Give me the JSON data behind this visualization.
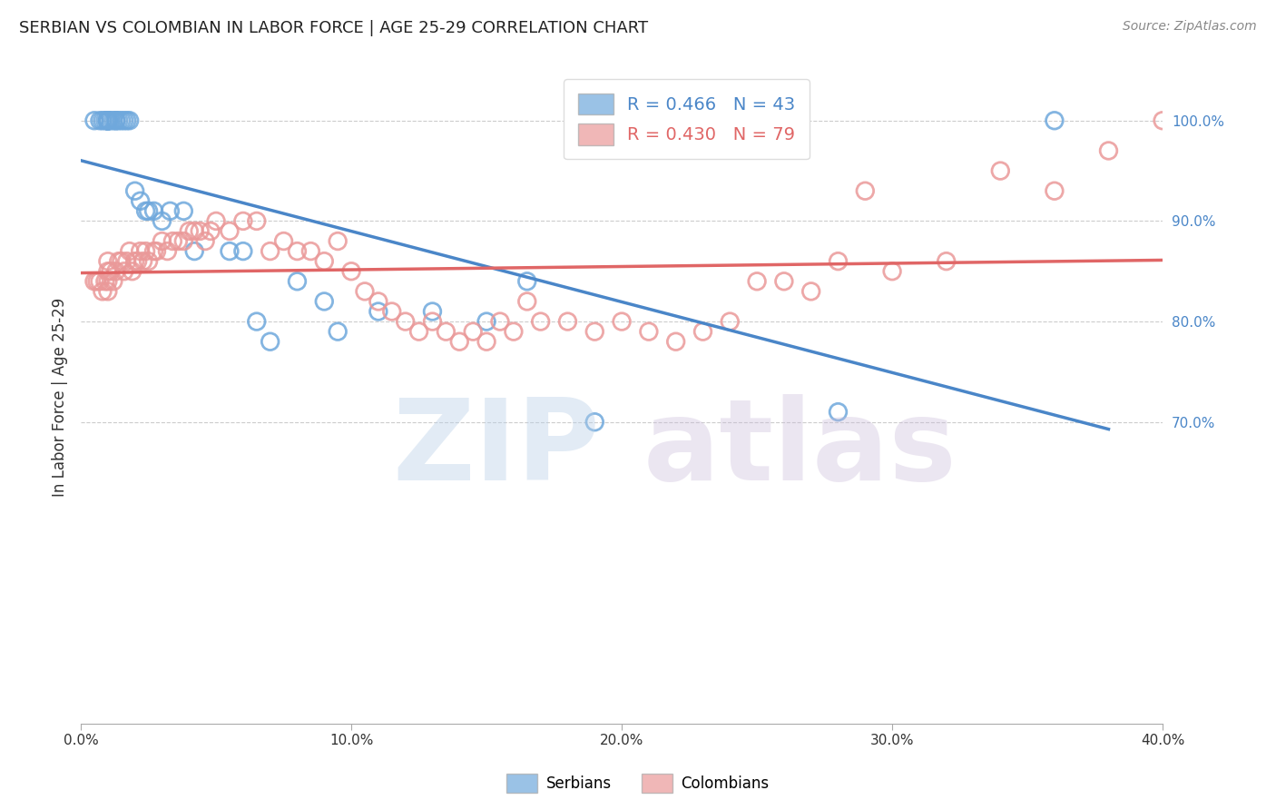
{
  "title": "SERBIAN VS COLOMBIAN IN LABOR FORCE | AGE 25-29 CORRELATION CHART",
  "source": "Source: ZipAtlas.com",
  "ylabel": "In Labor Force | Age 25-29",
  "xlabel_ticks": [
    "0.0%",
    "10.0%",
    "20.0%",
    "30.0%",
    "40.0%"
  ],
  "xlabel_vals": [
    0.0,
    0.1,
    0.2,
    0.3,
    0.4
  ],
  "ylabel_ticks": [
    "70.0%",
    "80.0%",
    "90.0%",
    "100.0%"
  ],
  "ylabel_vals": [
    0.7,
    0.8,
    0.9,
    1.0
  ],
  "xlim": [
    0.0,
    0.4
  ],
  "ylim": [
    0.4,
    1.05
  ],
  "R_serbian": 0.466,
  "N_serbian": 43,
  "R_colombian": 0.43,
  "N_colombian": 79,
  "blue_color": "#6fa8dc",
  "pink_color": "#ea9999",
  "blue_line_color": "#4a86c8",
  "pink_line_color": "#e06666",
  "title_color": "#222222",
  "axis_label_color": "#333333",
  "tick_color_right": "#4a86c8",
  "grid_color": "#cccccc",
  "legend_label_serbian": "Serbians",
  "legend_label_colombian": "Colombians",
  "serbian_x": [
    0.005,
    0.007,
    0.008,
    0.009,
    0.01,
    0.01,
    0.01,
    0.01,
    0.01,
    0.01,
    0.01,
    0.011,
    0.012,
    0.013,
    0.013,
    0.014,
    0.015,
    0.016,
    0.017,
    0.018,
    0.02,
    0.022,
    0.024,
    0.025,
    0.027,
    0.03,
    0.033,
    0.038,
    0.042,
    0.055,
    0.06,
    0.065,
    0.07,
    0.08,
    0.09,
    0.095,
    0.11,
    0.13,
    0.15,
    0.165,
    0.19,
    0.28,
    0.36
  ],
  "serbian_y": [
    1.0,
    1.0,
    1.0,
    1.0,
    1.0,
    1.0,
    1.0,
    1.0,
    1.0,
    1.0,
    1.0,
    1.0,
    1.0,
    1.0,
    1.0,
    1.0,
    1.0,
    1.0,
    1.0,
    1.0,
    0.93,
    0.92,
    0.91,
    0.91,
    0.91,
    0.9,
    0.91,
    0.91,
    0.87,
    0.87,
    0.87,
    0.8,
    0.78,
    0.84,
    0.82,
    0.79,
    0.81,
    0.81,
    0.8,
    0.84,
    0.7,
    0.71,
    1.0
  ],
  "colombian_x": [
    0.005,
    0.006,
    0.007,
    0.008,
    0.009,
    0.01,
    0.01,
    0.01,
    0.01,
    0.011,
    0.012,
    0.013,
    0.014,
    0.015,
    0.016,
    0.017,
    0.018,
    0.019,
    0.02,
    0.021,
    0.022,
    0.023,
    0.024,
    0.025,
    0.027,
    0.028,
    0.03,
    0.032,
    0.034,
    0.036,
    0.038,
    0.04,
    0.042,
    0.044,
    0.046,
    0.048,
    0.05,
    0.055,
    0.06,
    0.065,
    0.07,
    0.075,
    0.08,
    0.085,
    0.09,
    0.095,
    0.1,
    0.105,
    0.11,
    0.115,
    0.12,
    0.125,
    0.13,
    0.135,
    0.14,
    0.145,
    0.15,
    0.155,
    0.16,
    0.165,
    0.17,
    0.18,
    0.19,
    0.2,
    0.21,
    0.22,
    0.23,
    0.24,
    0.25,
    0.26,
    0.27,
    0.28,
    0.29,
    0.3,
    0.32,
    0.34,
    0.36,
    0.38,
    0.4
  ],
  "colombian_y": [
    0.84,
    0.84,
    0.84,
    0.83,
    0.84,
    0.85,
    0.84,
    0.83,
    0.86,
    0.85,
    0.84,
    0.85,
    0.86,
    0.86,
    0.85,
    0.86,
    0.87,
    0.85,
    0.86,
    0.86,
    0.87,
    0.86,
    0.87,
    0.86,
    0.87,
    0.87,
    0.88,
    0.87,
    0.88,
    0.88,
    0.88,
    0.89,
    0.89,
    0.89,
    0.88,
    0.89,
    0.9,
    0.89,
    0.9,
    0.9,
    0.87,
    0.88,
    0.87,
    0.87,
    0.86,
    0.88,
    0.85,
    0.83,
    0.82,
    0.81,
    0.8,
    0.79,
    0.8,
    0.79,
    0.78,
    0.79,
    0.78,
    0.8,
    0.79,
    0.82,
    0.8,
    0.8,
    0.79,
    0.8,
    0.79,
    0.78,
    0.79,
    0.8,
    0.84,
    0.84,
    0.83,
    0.86,
    0.93,
    0.85,
    0.86,
    0.95,
    0.93,
    0.97,
    1.0
  ]
}
